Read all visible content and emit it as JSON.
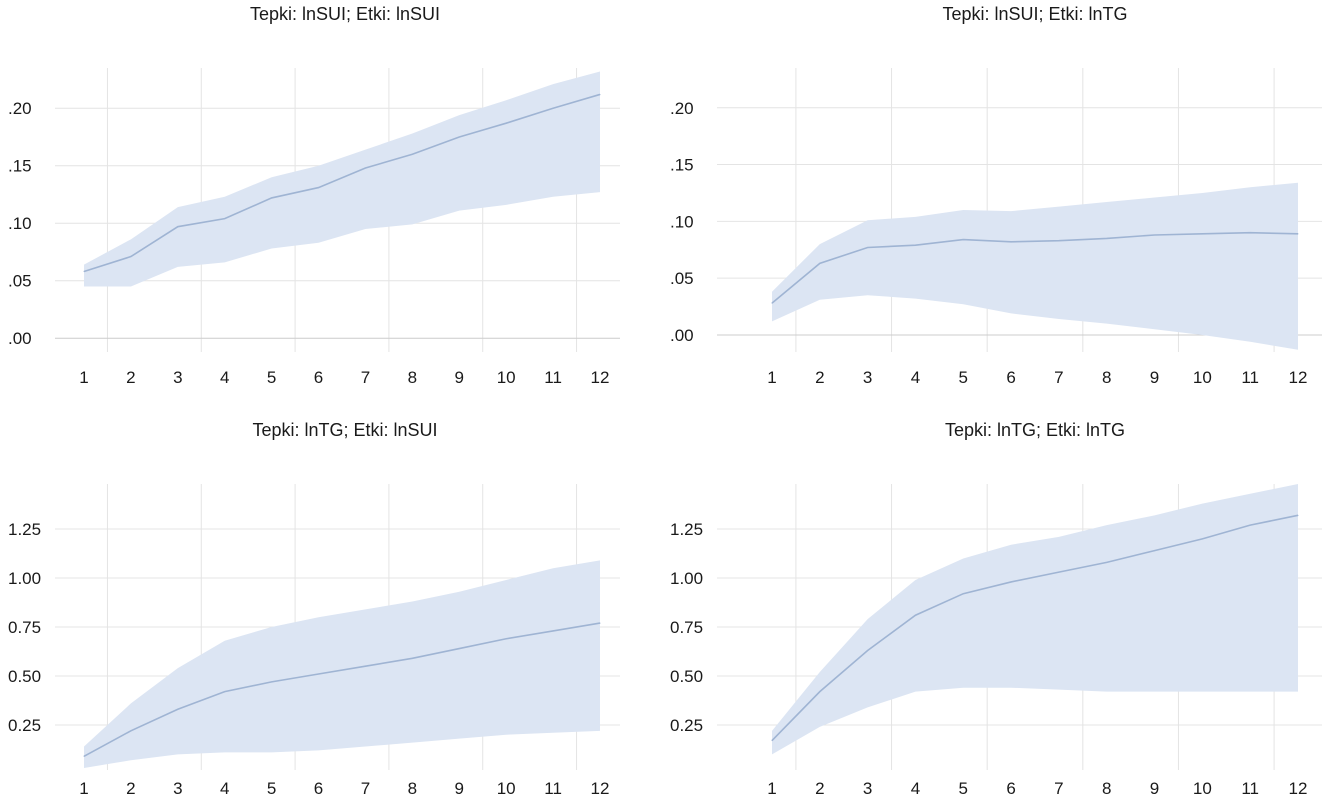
{
  "chart_data": [
    {
      "type": "line",
      "title": "Tepki: lnSUI; Etki: lnSUI",
      "x": [
        1,
        2,
        3,
        4,
        5,
        6,
        7,
        8,
        9,
        10,
        11,
        12
      ],
      "yticks": [
        ".00",
        ".05",
        ".10",
        ".15",
        ".20"
      ],
      "ytick_values": [
        0.0,
        0.05,
        0.1,
        0.15,
        0.2
      ],
      "ylim": [
        -0.012,
        0.235
      ],
      "series": [
        {
          "values": [
            0.058,
            0.071,
            0.097,
            0.104,
            0.122,
            0.131,
            0.148,
            0.16,
            0.175,
            0.187,
            0.2,
            0.212
          ]
        }
      ],
      "band_upper": [
        0.064,
        0.086,
        0.114,
        0.123,
        0.14,
        0.15,
        0.164,
        0.178,
        0.194,
        0.207,
        0.221,
        0.232
      ],
      "band_lower": [
        0.045,
        0.045,
        0.062,
        0.066,
        0.078,
        0.083,
        0.095,
        0.099,
        0.111,
        0.116,
        0.123,
        0.127
      ],
      "grid": true
    },
    {
      "type": "line",
      "title": "Tepki: lnSUI; Etki: lnTG",
      "x": [
        1,
        2,
        3,
        4,
        5,
        6,
        7,
        8,
        9,
        10,
        11,
        12
      ],
      "yticks": [
        ".00",
        ".05",
        ".10",
        ".15",
        ".20"
      ],
      "ytick_values": [
        0.0,
        0.05,
        0.1,
        0.15,
        0.2
      ],
      "ylim": [
        -0.015,
        0.235
      ],
      "series": [
        {
          "values": [
            0.028,
            0.063,
            0.077,
            0.079,
            0.084,
            0.082,
            0.083,
            0.085,
            0.088,
            0.089,
            0.09,
            0.089
          ]
        }
      ],
      "band_upper": [
        0.038,
        0.08,
        0.101,
        0.104,
        0.11,
        0.109,
        0.113,
        0.117,
        0.121,
        0.125,
        0.13,
        0.134
      ],
      "band_lower": [
        0.012,
        0.031,
        0.035,
        0.032,
        0.027,
        0.019,
        0.014,
        0.01,
        0.005,
        0.0,
        -0.006,
        -0.013
      ],
      "grid": true
    },
    {
      "type": "line",
      "title": "Tepki: lnTG; Etki: lnSUI",
      "x": [
        1,
        2,
        3,
        4,
        5,
        6,
        7,
        8,
        9,
        10,
        11,
        12
      ],
      "yticks": [
        "0.25",
        "0.50",
        "0.75",
        "1.00",
        "1.25"
      ],
      "ytick_values": [
        0.25,
        0.5,
        0.75,
        1.0,
        1.25
      ],
      "ylim": [
        0.02,
        1.48
      ],
      "series": [
        {
          "values": [
            0.09,
            0.22,
            0.33,
            0.42,
            0.47,
            0.51,
            0.55,
            0.59,
            0.64,
            0.69,
            0.73,
            0.77
          ]
        }
      ],
      "band_upper": [
        0.14,
        0.36,
        0.54,
        0.68,
        0.75,
        0.8,
        0.84,
        0.88,
        0.93,
        0.99,
        1.05,
        1.09
      ],
      "band_lower": [
        0.03,
        0.07,
        0.1,
        0.11,
        0.11,
        0.12,
        0.14,
        0.16,
        0.18,
        0.2,
        0.21,
        0.22
      ],
      "grid": true
    },
    {
      "type": "line",
      "title": "Tepki: lnTG; Etki: lnTG",
      "x": [
        1,
        2,
        3,
        4,
        5,
        6,
        7,
        8,
        9,
        10,
        11,
        12
      ],
      "yticks": [
        "0.25",
        "0.50",
        "0.75",
        "1.00",
        "1.25"
      ],
      "ytick_values": [
        0.25,
        0.5,
        0.75,
        1.0,
        1.25
      ],
      "ylim": [
        0.02,
        1.48
      ],
      "series": [
        {
          "values": [
            0.17,
            0.42,
            0.63,
            0.81,
            0.92,
            0.98,
            1.03,
            1.08,
            1.14,
            1.2,
            1.27,
            1.32
          ]
        }
      ],
      "band_upper": [
        0.22,
        0.52,
        0.79,
        0.99,
        1.1,
        1.17,
        1.21,
        1.27,
        1.32,
        1.38,
        1.43,
        1.48
      ],
      "band_lower": [
        0.1,
        0.24,
        0.34,
        0.42,
        0.44,
        0.44,
        0.43,
        0.42,
        0.42,
        0.42,
        0.42,
        0.42
      ],
      "grid": true
    }
  ],
  "colors": {
    "band": "#dce5f3",
    "line": "#9fb4d3",
    "grid": "#e4e4e4",
    "zero_line": "#cccccc",
    "text": "#1a1a1a"
  }
}
